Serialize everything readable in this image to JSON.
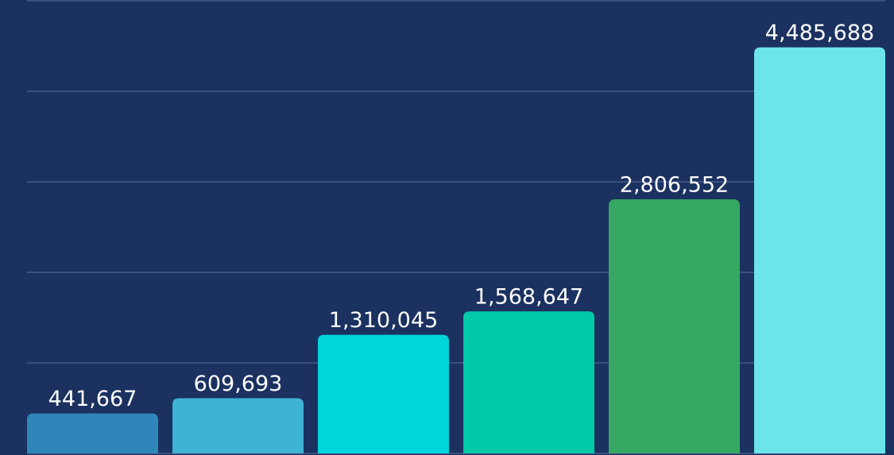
{
  "chart_data": {
    "type": "bar",
    "values": [
      441667,
      609693,
      1310045,
      1568647,
      2806552,
      4485688
    ],
    "value_labels": [
      "441,667",
      "609,693",
      "1,310,045",
      "1,568,647",
      "2,806,552",
      "4,485,688"
    ],
    "colors": [
      "#2e86b9",
      "#3fb3d3",
      "#00d6dc",
      "#00c9a7",
      "#36a862",
      "#6ce5ea"
    ],
    "ylim": [
      0,
      5000000
    ],
    "yticks": [
      0,
      1000000,
      2000000,
      3000000,
      4000000,
      5000000
    ],
    "grid": true
  }
}
